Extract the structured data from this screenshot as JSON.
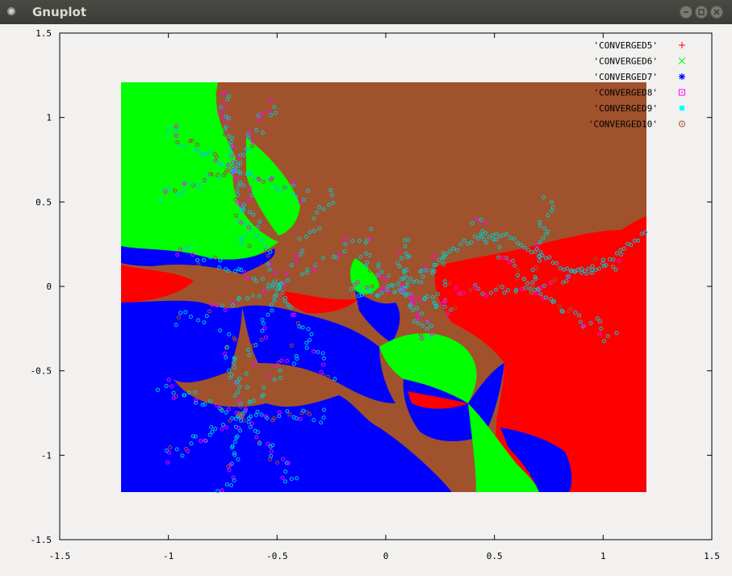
{
  "window": {
    "title": "Gnuplot"
  },
  "colors": {
    "titlebar": "#3c3b37",
    "background": "#f2f1f0",
    "red": "#ff0000",
    "green": "#00ff00",
    "blue": "#0000ff",
    "magenta": "#ff00ff",
    "cyan": "#00ffff",
    "brown": "#a0522d"
  },
  "chart_data": {
    "type": "scatter",
    "title": "",
    "xlabel": "",
    "ylabel": "",
    "xlim": [
      -1.5,
      1.5
    ],
    "ylim": [
      -1.5,
      1.5
    ],
    "xticks": [
      "-1.5",
      "-1",
      "-0.5",
      "0",
      "0.5",
      "1",
      "1.5"
    ],
    "yticks": [
      "1.5",
      "1",
      "0.5",
      "0",
      "-0.5",
      "-1",
      "-1.5"
    ],
    "grid": false,
    "legend_position": "top-right",
    "legend": [
      {
        "label": "'CONVERGED5'",
        "marker": "+",
        "color": "#ff0000"
      },
      {
        "label": "'CONVERGED6'",
        "marker": "x",
        "color": "#00ff00"
      },
      {
        "label": "'CONVERGED7'",
        "marker": "*",
        "color": "#0000ff"
      },
      {
        "label": "'CONVERGED8'",
        "marker": "square",
        "color": "#ff00ff"
      },
      {
        "label": "'CONVERGED9'",
        "marker": "filled-square",
        "color": "#00ffff"
      },
      {
        "label": "'CONVERGED10'",
        "marker": "circle",
        "color": "#a0522d"
      }
    ],
    "data_extent": {
      "x": [
        -1.2,
        1.2
      ],
      "y": [
        -1.2,
        1.2
      ]
    },
    "description": "basins of attraction of a Newton fractal; dense point cloud filling [-1.2,1.2]^2"
  }
}
